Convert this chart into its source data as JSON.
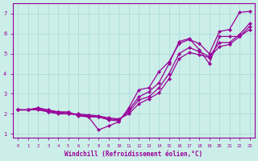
{
  "xlabel": "Windchill (Refroidissement éolien,°C)",
  "bg_color": "#cceee8",
  "grid_color": "#aadddd",
  "line_color": "#990099",
  "xlim": [
    -0.5,
    23.5
  ],
  "ylim": [
    0.8,
    7.5
  ],
  "xticks": [
    0,
    1,
    2,
    3,
    4,
    5,
    6,
    7,
    8,
    9,
    10,
    11,
    12,
    13,
    14,
    15,
    16,
    17,
    18,
    19,
    20,
    21,
    22,
    23
  ],
  "yticks": [
    1,
    2,
    3,
    4,
    5,
    6,
    7
  ],
  "lines": [
    {
      "x": [
        0,
        1,
        2,
        3,
        4,
        5,
        6,
        7,
        8,
        9,
        10,
        11,
        12,
        13,
        14,
        15,
        16,
        17,
        18,
        19,
        20,
        21,
        22,
        23
      ],
      "y": [
        2.2,
        2.2,
        2.3,
        2.15,
        2.1,
        2.05,
        1.95,
        1.85,
        1.2,
        1.4,
        1.6,
        2.3,
        3.2,
        3.3,
        4.1,
        4.6,
        5.5,
        5.7,
        5.5,
        5.0,
        6.1,
        6.2,
        7.05,
        7.1
      ]
    },
    {
      "x": [
        0,
        1,
        2,
        3,
        4,
        5,
        6,
        7,
        8,
        9,
        10,
        11,
        12,
        13,
        14,
        15,
        16,
        17,
        18,
        19,
        20,
        21,
        22,
        23
      ],
      "y": [
        2.2,
        2.2,
        2.3,
        2.2,
        2.1,
        2.1,
        1.9,
        1.85,
        1.85,
        1.7,
        1.65,
        2.2,
        2.85,
        3.1,
        3.55,
        4.5,
        5.6,
        5.75,
        5.2,
        4.5,
        5.85,
        5.85,
        5.85,
        6.2
      ]
    },
    {
      "x": [
        0,
        1,
        2,
        3,
        4,
        5,
        6,
        7,
        8,
        9,
        10,
        11,
        12,
        13,
        14,
        15,
        16,
        17,
        18,
        19,
        20,
        21,
        22,
        23
      ],
      "y": [
        2.2,
        2.2,
        2.25,
        2.1,
        2.0,
        2.0,
        1.95,
        1.9,
        1.85,
        1.75,
        1.7,
        2.1,
        2.7,
        2.85,
        3.3,
        4.0,
        5.0,
        5.3,
        5.1,
        4.85,
        5.55,
        5.55,
        5.95,
        6.5
      ]
    },
    {
      "x": [
        0,
        1,
        2,
        3,
        4,
        5,
        6,
        7,
        8,
        9,
        10,
        11,
        12,
        13,
        14,
        15,
        16,
        17,
        18,
        19,
        20,
        21,
        22,
        23
      ],
      "y": [
        2.2,
        2.2,
        2.2,
        2.1,
        2.05,
        2.0,
        2.0,
        1.95,
        1.9,
        1.8,
        1.75,
        2.0,
        2.5,
        2.75,
        3.05,
        3.75,
        4.75,
        5.05,
        4.95,
        4.8,
        5.35,
        5.45,
        5.85,
        6.35
      ]
    }
  ]
}
